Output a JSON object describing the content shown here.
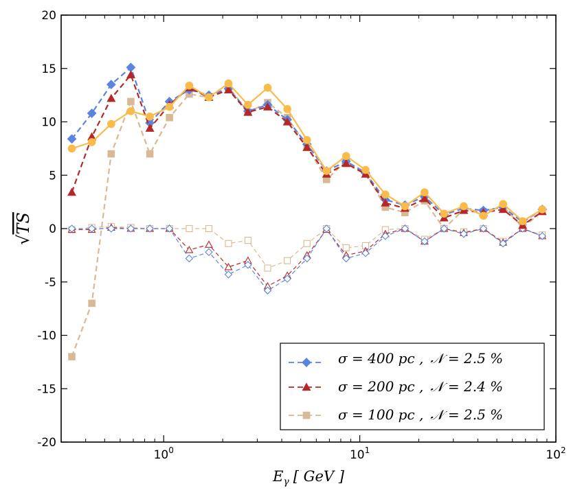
{
  "chart_data": {
    "type": "line",
    "xlabel": "E_γ [ GeV ]",
    "xlabel_main": "E",
    "xlabel_sub": "γ",
    "xlabel_unit": "[ GeV ]",
    "ylabel": "√TS",
    "ylabel_inner": "TS",
    "x_scale": "log",
    "xlim": [
      0.3,
      100
    ],
    "ylim": [
      -20,
      20
    ],
    "x_ticks": [
      1,
      10,
      100
    ],
    "x_tick_labels": [
      {
        "base": "10",
        "exp": "0"
      },
      {
        "base": "10",
        "exp": "1"
      },
      {
        "base": "10",
        "exp": "2"
      }
    ],
    "y_ticks": [
      -20,
      -15,
      -10,
      -5,
      0,
      5,
      10,
      15,
      20
    ],
    "y_tick_labels": [
      "-20",
      "-15",
      "-10",
      "-5",
      "0",
      "5",
      "10",
      "15",
      "20"
    ],
    "grid": false,
    "legend_position": "lower-right",
    "x": [
      0.34,
      0.43,
      0.54,
      0.68,
      0.85,
      1.07,
      1.35,
      1.7,
      2.14,
      2.69,
      3.39,
      4.27,
      5.38,
      6.77,
      8.52,
      10.7,
      13.5,
      17.0,
      21.4,
      26.9,
      33.9,
      42.7,
      53.8,
      67.7,
      85.2
    ],
    "series": [
      {
        "name": "σ = 400 pc , 𝒩 = 2.5 %",
        "name_parts": {
          "sigma": "σ = 400 pc ,",
          "n": "𝒩 = 2.5 %"
        },
        "color": "#5b84e0",
        "marker": "diamond",
        "line_style": "dashed",
        "values": [
          8.4,
          10.8,
          13.5,
          15.1,
          9.9,
          11.9,
          13.0,
          12.5,
          13.1,
          11.0,
          11.6,
          10.2,
          7.9,
          5.4,
          6.3,
          5.2,
          2.7,
          2.2,
          3.0,
          1.3,
          1.9,
          1.7,
          2.0,
          0.6,
          1.8
        ]
      },
      {
        "name": "σ = 200 pc , 𝒩 = 2.4 %",
        "name_parts": {
          "sigma": "σ = 200 pc ,",
          "n": "𝒩 = 2.4 %"
        },
        "color": "#b52828",
        "marker": "triangle",
        "line_style": "dashed",
        "values": [
          3.4,
          8.6,
          12.2,
          14.4,
          9.4,
          11.6,
          13.2,
          12.3,
          13.0,
          10.9,
          11.4,
          10.0,
          7.6,
          5.1,
          6.1,
          5.1,
          2.4,
          1.9,
          2.8,
          1.0,
          1.7,
          1.5,
          1.8,
          0.3,
          1.6
        ]
      },
      {
        "name": "σ = 100 pc , 𝒩 = 2.5 %",
        "name_parts": {
          "sigma": "σ = 100 pc ,",
          "n": "𝒩 = 2.5 %"
        },
        "color": "#d8b996",
        "marker": "square",
        "line_style": "dashed",
        "values": [
          -12.0,
          -7.0,
          7.0,
          11.9,
          7.0,
          10.4,
          12.6,
          12.3,
          13.3,
          10.9,
          11.8,
          10.4,
          7.7,
          4.6,
          6.3,
          5.3,
          2.0,
          1.5,
          2.6,
          0.0,
          1.8,
          1.6,
          2.1,
          0.1,
          1.6
        ]
      },
      {
        "name": "",
        "color": "#f9bb4c",
        "marker": "circle",
        "line_style": "solid",
        "values": [
          7.5,
          8.1,
          9.8,
          11.0,
          10.5,
          11.4,
          13.4,
          12.3,
          13.6,
          11.6,
          13.2,
          11.2,
          8.3,
          5.4,
          6.8,
          5.5,
          3.2,
          2.1,
          3.4,
          1.4,
          2.1,
          1.2,
          2.3,
          0.7,
          1.8
        ]
      },
      {
        "name": "",
        "color": "#5b84e0",
        "marker": "open-diamond",
        "line_style": "dashed",
        "values": [
          0.0,
          0.0,
          0.0,
          0.0,
          0.0,
          0.0,
          -2.8,
          -2.2,
          -4.3,
          -3.4,
          -5.8,
          -4.7,
          -2.8,
          0.0,
          -2.8,
          -2.3,
          -0.7,
          0.0,
          -1.2,
          0.0,
          -0.5,
          0.0,
          -1.4,
          0.0,
          -0.7
        ]
      },
      {
        "name": "",
        "color": "#b52828",
        "marker": "open-triangle",
        "line_style": "dashed",
        "values": [
          -0.1,
          -0.1,
          0.1,
          0.0,
          0.0,
          0.0,
          -2.0,
          -1.5,
          -3.6,
          -3.0,
          -5.4,
          -4.4,
          -2.5,
          -0.1,
          -2.5,
          -2.1,
          -0.5,
          0.0,
          -1.2,
          0.0,
          -0.4,
          0.0,
          -1.3,
          0.0,
          -0.7
        ]
      },
      {
        "name": "",
        "color": "#d8b996",
        "marker": "open-square",
        "line_style": "dashed",
        "values": [
          -0.1,
          0.1,
          0.2,
          0.1,
          0.0,
          0.0,
          0.0,
          0.0,
          -1.4,
          -1.1,
          -3.7,
          -3.0,
          -1.4,
          0.0,
          -1.8,
          -1.6,
          -0.1,
          0.0,
          -1.0,
          0.0,
          -0.3,
          0.0,
          -1.2,
          0.0,
          -0.6
        ]
      }
    ]
  }
}
